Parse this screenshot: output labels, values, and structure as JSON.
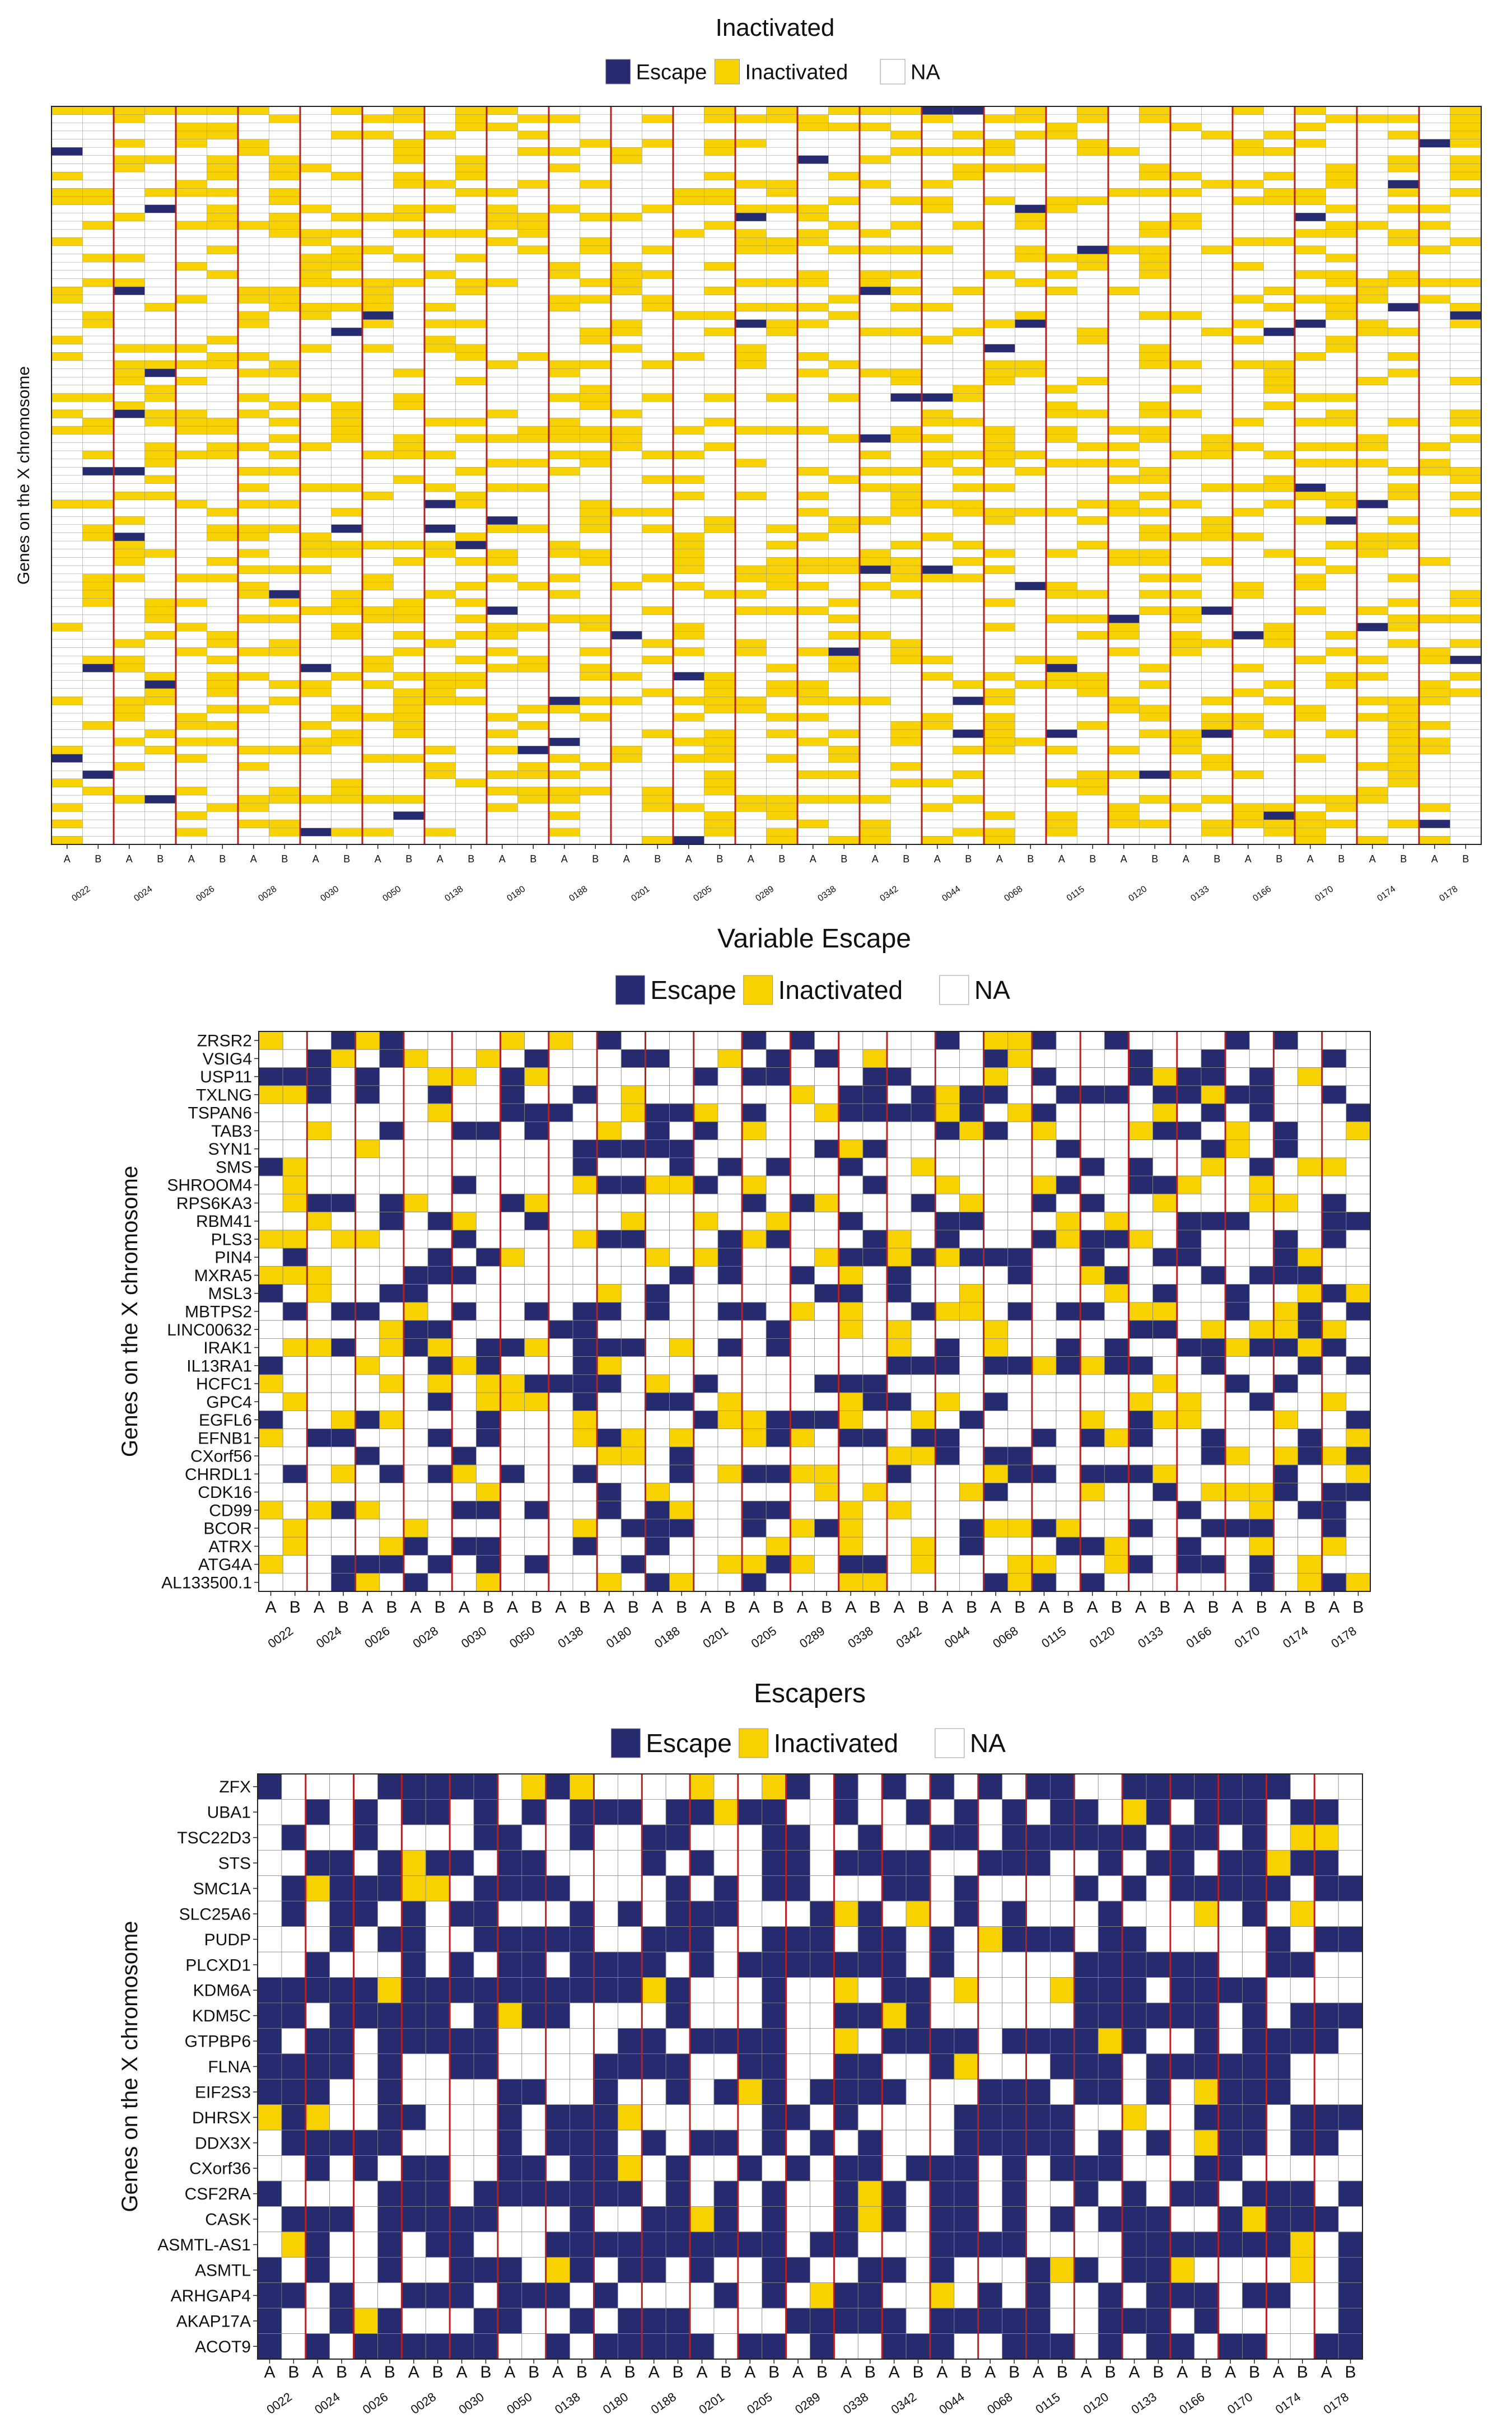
{
  "chart_data": [
    {
      "type": "heatmap",
      "title": "Inactivated",
      "ylabel": "Genes on the X chromosome",
      "xlabel": "",
      "legend": {
        "placement": "top",
        "entries": [
          {
            "label": "Escape",
            "color": "#262a6e"
          },
          {
            "label": "Inactivated",
            "color": "#f8d200"
          },
          {
            "label": "NA",
            "color": "#ffffff"
          }
        ]
      },
      "samples": [
        "0022",
        "0024",
        "0026",
        "0028",
        "0030",
        "0050",
        "0138",
        "0180",
        "0188",
        "0201",
        "0205",
        "0289",
        "0338",
        "0342",
        "0044",
        "0068",
        "0115",
        "0120",
        "0133",
        "0166",
        "0170",
        "0174",
        "0178"
      ],
      "alleles": [
        "A",
        "B"
      ],
      "gene_row_count": 90,
      "gene_labels_shown": false,
      "separator_color": "#b22222",
      "grid": true
    },
    {
      "type": "heatmap",
      "title": "Variable Escape",
      "ylabel": "Genes on the X chromosome",
      "xlabel": "",
      "legend": {
        "placement": "top",
        "entries": [
          {
            "label": "Escape",
            "color": "#262a6e"
          },
          {
            "label": "Inactivated",
            "color": "#f8d200"
          },
          {
            "label": "NA",
            "color": "#ffffff"
          }
        ]
      },
      "samples": [
        "0022",
        "0024",
        "0026",
        "0028",
        "0030",
        "0050",
        "0138",
        "0180",
        "0188",
        "0201",
        "0205",
        "0289",
        "0338",
        "0342",
        "0044",
        "0068",
        "0115",
        "0120",
        "0133",
        "0166",
        "0170",
        "0174",
        "0178"
      ],
      "alleles": [
        "A",
        "B"
      ],
      "genes": [
        "ZRSR2",
        "VSIG4",
        "USP11",
        "TXLNG",
        "TSPAN6",
        "TAB3",
        "SYN1",
        "SMS",
        "SHROOM4",
        "RPS6KA3",
        "RBM41",
        "PLS3",
        "PIN4",
        "MXRA5",
        "MSL3",
        "MBTPS2",
        "LINC00632",
        "IRAK1",
        "IL13RA1",
        "HCFC1",
        "GPC4",
        "EGFL6",
        "EFNB1",
        "CXorf56",
        "CHRDL1",
        "CDK16",
        "CD99",
        "BCOR",
        "ATRX",
        "ATG4A",
        "AL133500.1"
      ],
      "separator_color": "#b22222",
      "grid": true
    },
    {
      "type": "heatmap",
      "title": "Escapers",
      "ylabel": "Genes on the X chromosome",
      "xlabel": "",
      "legend": {
        "placement": "top",
        "entries": [
          {
            "label": "Escape",
            "color": "#262a6e"
          },
          {
            "label": "Inactivated",
            "color": "#f8d200"
          },
          {
            "label": "NA",
            "color": "#ffffff"
          }
        ]
      },
      "samples": [
        "0022",
        "0024",
        "0026",
        "0028",
        "0030",
        "0050",
        "0138",
        "0180",
        "0188",
        "0201",
        "0205",
        "0289",
        "0338",
        "0342",
        "0044",
        "0068",
        "0115",
        "0120",
        "0133",
        "0166",
        "0170",
        "0174",
        "0178"
      ],
      "alleles": [
        "A",
        "B"
      ],
      "genes": [
        "ZFX",
        "UBA1",
        "TSC22D3",
        "STS",
        "SMC1A",
        "SLC25A6",
        "PUDP",
        "PLCXD1",
        "KDM6A",
        "KDM5C",
        "GTPBP6",
        "FLNA",
        "EIF2S3",
        "DHRSX",
        "DDX3X",
        "CXorf36",
        "CSF2RA",
        "CASK",
        "ASMTL-AS1",
        "ASMTL",
        "ARHGAP4",
        "AKAP17A",
        "ACOT9"
      ],
      "separator_color": "#b22222",
      "grid": true
    }
  ]
}
